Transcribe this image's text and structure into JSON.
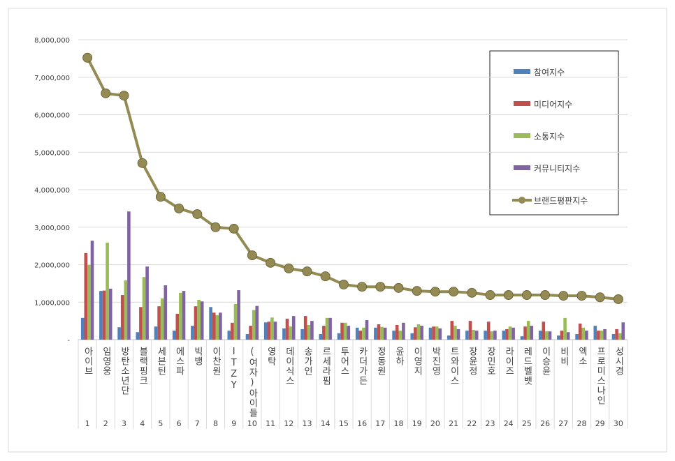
{
  "chart_data": {
    "type": "bar_line",
    "categories": [
      "아이브",
      "임영웅",
      "방탄소년단",
      "블랙핑크",
      "세븐틴",
      "에스파",
      "빅뱅",
      "이찬원",
      "ITZY",
      "(여자)아이들",
      "영탁",
      "데이식스",
      "송가인",
      "르세라핌",
      "투어스",
      "카더가든",
      "정동원",
      "윤하",
      "이영지",
      "박진영",
      "트와이스",
      "장윤정",
      "장민호",
      "라이즈",
      "레드벨벳",
      "이승윤",
      "비비",
      "엑소",
      "프로미스나인",
      "성시경"
    ],
    "ranks": [
      1,
      2,
      3,
      4,
      5,
      6,
      7,
      8,
      9,
      10,
      11,
      12,
      13,
      14,
      15,
      16,
      17,
      18,
      19,
      20,
      21,
      22,
      23,
      24,
      25,
      26,
      27,
      28,
      29,
      30
    ],
    "series": [
      {
        "name": "참여지수",
        "color": "#4f81bd",
        "values": [
          580000,
          1300000,
          330000,
          200000,
          350000,
          240000,
          370000,
          870000,
          240000,
          150000,
          460000,
          300000,
          280000,
          150000,
          170000,
          320000,
          320000,
          240000,
          170000,
          320000,
          110000,
          240000,
          240000,
          240000,
          90000,
          240000,
          110000,
          150000,
          370000,
          150000
        ]
      },
      {
        "name": "미디어지수",
        "color": "#c0504d",
        "values": [
          2310000,
          1310000,
          1190000,
          870000,
          890000,
          690000,
          890000,
          720000,
          450000,
          370000,
          480000,
          560000,
          630000,
          370000,
          450000,
          240000,
          410000,
          390000,
          330000,
          350000,
          500000,
          500000,
          480000,
          280000,
          350000,
          480000,
          240000,
          430000,
          240000,
          280000
        ]
      },
      {
        "name": "소통지수",
        "color": "#9bbb59",
        "values": [
          1990000,
          2590000,
          1580000,
          1670000,
          1100000,
          1250000,
          1060000,
          650000,
          950000,
          790000,
          590000,
          350000,
          390000,
          580000,
          450000,
          320000,
          340000,
          240000,
          410000,
          350000,
          370000,
          260000,
          220000,
          350000,
          500000,
          220000,
          580000,
          320000,
          240000,
          170000
        ]
      },
      {
        "name": "커뮤니티지수",
        "color": "#8064a2",
        "values": [
          2640000,
          1360000,
          3420000,
          1950000,
          1450000,
          1300000,
          1020000,
          720000,
          1320000,
          900000,
          480000,
          630000,
          500000,
          580000,
          370000,
          520000,
          320000,
          450000,
          370000,
          300000,
          280000,
          240000,
          240000,
          320000,
          370000,
          220000,
          200000,
          240000,
          280000,
          460000
        ]
      },
      {
        "name": "브랜드평판지수",
        "color": "#948a54",
        "kind": "line",
        "values": [
          7520000,
          6570000,
          6510000,
          4710000,
          3810000,
          3500000,
          3350000,
          3000000,
          2960000,
          2250000,
          2050000,
          1900000,
          1820000,
          1690000,
          1470000,
          1410000,
          1410000,
          1380000,
          1300000,
          1280000,
          1280000,
          1250000,
          1190000,
          1190000,
          1190000,
          1190000,
          1170000,
          1170000,
          1130000,
          1080000
        ]
      }
    ],
    "ylim": [
      0,
      8000000
    ],
    "yticks": [
      {
        "value": 0,
        "label": "-"
      },
      {
        "value": 1000000,
        "label": "1,000,000"
      },
      {
        "value": 2000000,
        "label": "2,000,000"
      },
      {
        "value": 3000000,
        "label": "3,000,000"
      },
      {
        "value": 4000000,
        "label": "4,000,000"
      },
      {
        "value": 5000000,
        "label": "5,000,000"
      },
      {
        "value": 6000000,
        "label": "6,000,000"
      },
      {
        "value": 7000000,
        "label": "7,000,000"
      },
      {
        "value": 8000000,
        "label": "8,000,000"
      }
    ],
    "grid": true,
    "legend": "top-right"
  }
}
